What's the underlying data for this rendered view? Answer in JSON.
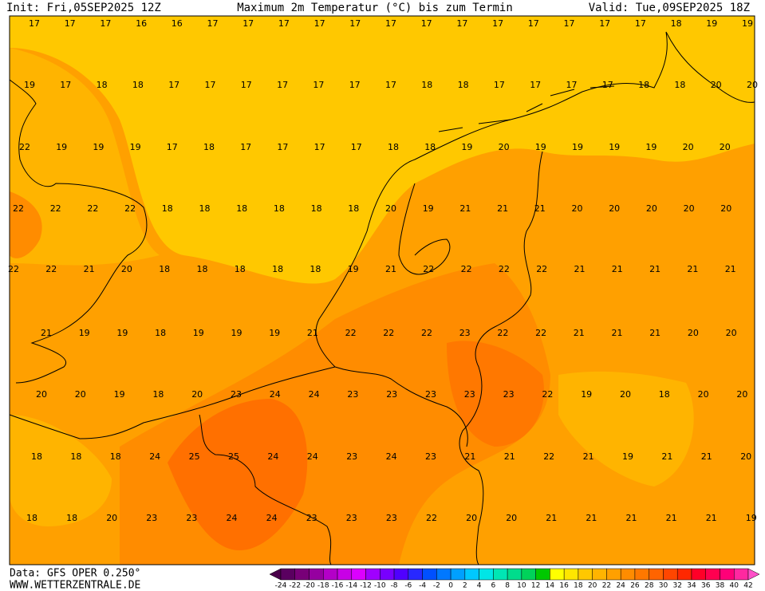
{
  "header": {
    "init": "Init: Fri,05SEP2025 12Z",
    "title": "Maximum 2m Temperatur (°C) bis zum Termin",
    "valid": "Valid: Tue,09SEP2025 18Z"
  },
  "map": {
    "rows": [
      [
        17,
        17,
        17,
        16,
        16,
        17,
        17,
        17,
        17,
        17,
        17,
        17,
        17,
        17,
        17,
        17,
        17,
        17,
        18,
        19,
        19
      ],
      [
        19,
        17,
        18,
        18,
        17,
        17,
        17,
        17,
        17,
        17,
        17,
        18,
        18,
        17,
        17,
        17,
        17,
        18,
        18,
        20,
        20
      ],
      [
        22,
        19,
        19,
        19,
        17,
        18,
        17,
        17,
        17,
        17,
        18,
        18,
        19,
        20,
        19,
        19,
        19,
        19,
        20,
        20
      ],
      [
        22,
        22,
        22,
        22,
        18,
        18,
        18,
        18,
        18,
        18,
        20,
        19,
        21,
        21,
        21,
        20,
        20,
        20,
        20,
        20
      ],
      [
        22,
        22,
        21,
        20,
        18,
        18,
        18,
        18,
        18,
        19,
        21,
        22,
        22,
        22,
        22,
        21,
        21,
        21,
        21,
        21
      ],
      [
        21,
        19,
        19,
        18,
        19,
        19,
        19,
        21,
        22,
        22,
        22,
        23,
        22,
        22,
        21,
        21,
        21,
        20,
        20
      ],
      [
        20,
        20,
        19,
        18,
        20,
        23,
        24,
        24,
        23,
        23,
        23,
        23,
        23,
        22,
        19,
        20,
        18,
        20,
        20
      ],
      [
        18,
        18,
        18,
        24,
        25,
        25,
        24,
        24,
        23,
        24,
        23,
        21,
        21,
        22,
        21,
        19,
        21,
        21,
        20
      ],
      [
        18,
        18,
        20,
        23,
        23,
        24,
        24,
        23,
        23,
        23,
        22,
        20,
        20,
        21,
        21,
        21,
        21,
        21,
        19
      ]
    ]
  },
  "colorbar": {
    "labels": [
      -24,
      -22,
      -20,
      -18,
      -16,
      -14,
      -12,
      -10,
      -8,
      -6,
      -4,
      -2,
      0,
      2,
      4,
      6,
      8,
      10,
      12,
      14,
      16,
      18,
      20,
      22,
      24,
      26,
      28,
      30,
      32,
      34,
      36,
      38,
      40,
      42
    ],
    "colors": [
      "#4b004b",
      "#5a0060",
      "#780078",
      "#9600a0",
      "#b400c8",
      "#c800e6",
      "#dc00ff",
      "#a000ff",
      "#7800ff",
      "#5000ff",
      "#2828ff",
      "#0050ff",
      "#0078ff",
      "#00a0ff",
      "#00c8ff",
      "#00e6e6",
      "#00e6b4",
      "#00dc8c",
      "#00d25a",
      "#00c800",
      "#ffff00",
      "#ffe600",
      "#ffc800",
      "#ffb400",
      "#ffa000",
      "#ff8c00",
      "#ff7800",
      "#ff6400",
      "#ff4600",
      "#ff2800",
      "#ff0028",
      "#ff0050",
      "#ff0078",
      "#ff28a0",
      "#ff50c8"
    ]
  },
  "footer": {
    "source": "Data: GFS OPER 0.250°",
    "site": "WWW.WETTERZENTRALE.DE"
  }
}
